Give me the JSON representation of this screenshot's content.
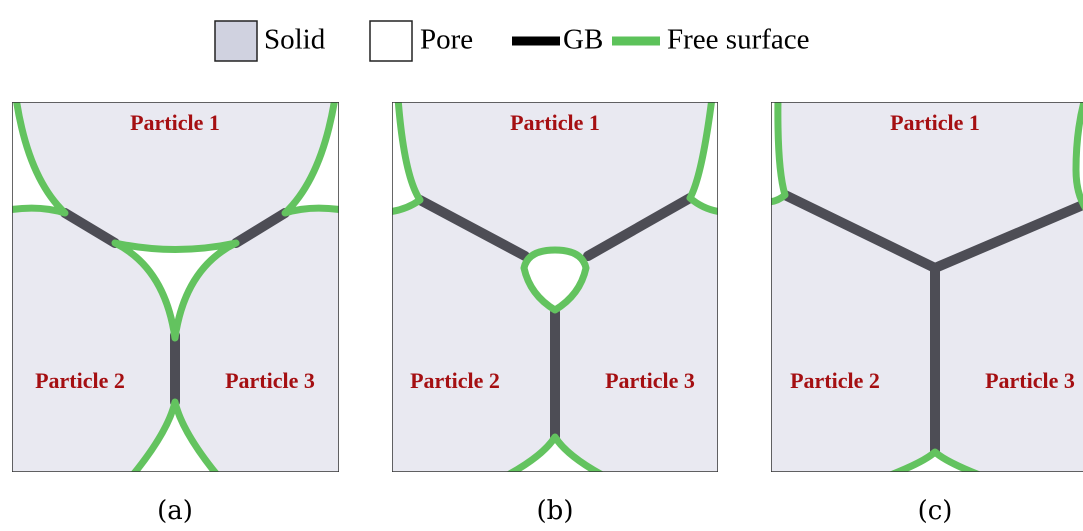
{
  "legend": [
    {
      "label": "Solid"
    },
    {
      "label": "Pore"
    },
    {
      "label": "GB"
    },
    {
      "label": "Free surface"
    }
  ],
  "panels": [
    {
      "caption": "(a)",
      "particles": [
        "Particle 1",
        "Particle 2",
        "Particle 3"
      ]
    },
    {
      "caption": "(b)",
      "particles": [
        "Particle 1",
        "Particle 2",
        "Particle 3"
      ]
    },
    {
      "caption": "(c)",
      "particles": [
        "Particle 1",
        "Particle 2",
        "Particle 3"
      ]
    }
  ]
}
